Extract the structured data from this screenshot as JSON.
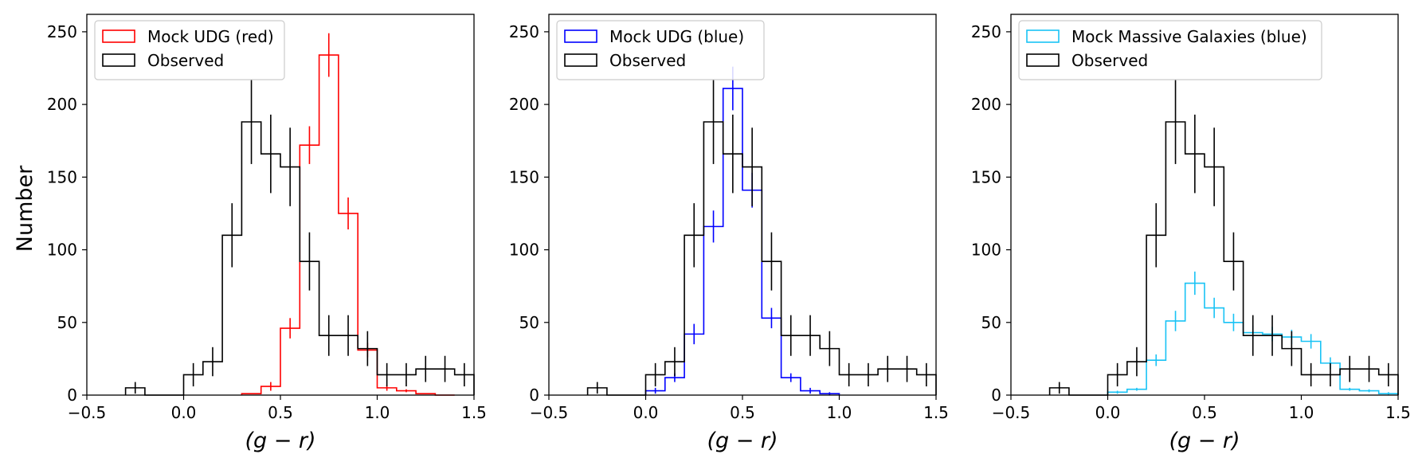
{
  "figure": {
    "shared_ylabel": "Number"
  },
  "chart_data": [
    {
      "type": "histogram",
      "title": "",
      "xlabel": "(g − r)",
      "ylabel": "Number",
      "xlim": [
        -0.5,
        1.5
      ],
      "ylim": [
        0,
        262
      ],
      "xticks": [
        -0.5,
        0.0,
        0.5,
        1.0,
        1.5
      ],
      "xtick_labels": [
        "−0.5",
        "0.0",
        "0.5",
        "1.0",
        "1.5"
      ],
      "yticks": [
        0,
        50,
        100,
        150,
        200,
        250
      ],
      "ytick_labels": [
        "0",
        "50",
        "100",
        "150",
        "200",
        "250"
      ],
      "legend": "top-left",
      "bin_width": 0.1,
      "series": [
        {
          "name": "Mock UDG (red)",
          "color": "#ff0000",
          "bin_left": [
            0.3,
            0.4,
            0.5,
            0.6,
            0.7,
            0.8,
            0.9,
            1.0,
            1.1,
            1.2,
            1.3
          ],
          "values": [
            1,
            6,
            46,
            172,
            234,
            125,
            31,
            5,
            3,
            1,
            0
          ],
          "errors": [
            0,
            3,
            7,
            13,
            15,
            11,
            5,
            2,
            1,
            0,
            0
          ]
        },
        {
          "name": "Observed",
          "color": "#000000",
          "bin_left": [
            -0.3,
            -0.2,
            -0.1,
            0.0,
            0.1,
            0.2,
            0.3,
            0.4,
            0.5,
            0.6,
            0.7,
            0.8,
            0.9,
            1.0,
            1.1,
            1.2,
            1.3,
            1.4
          ],
          "values": [
            5,
            0,
            0,
            14,
            23,
            110,
            188,
            166,
            157,
            92,
            41,
            41,
            32,
            14,
            14,
            18,
            18,
            14
          ],
          "errors": [
            4,
            0,
            0,
            8,
            10,
            22,
            29,
            27,
            27,
            20,
            14,
            14,
            12,
            8,
            8,
            9,
            9,
            8
          ]
        }
      ]
    },
    {
      "type": "histogram",
      "title": "",
      "xlabel": "(g − r)",
      "ylabel": "",
      "xlim": [
        -0.5,
        1.5
      ],
      "ylim": [
        0,
        262
      ],
      "xticks": [
        -0.5,
        0.0,
        0.5,
        1.0,
        1.5
      ],
      "xtick_labels": [
        "−0.5",
        "0.0",
        "0.5",
        "1.0",
        "1.5"
      ],
      "yticks": [
        0,
        50,
        100,
        150,
        200,
        250
      ],
      "ytick_labels": [
        "0",
        "50",
        "100",
        "150",
        "200",
        "250"
      ],
      "legend": "top-left",
      "bin_width": 0.1,
      "series": [
        {
          "name": "Mock UDG (blue)",
          "color": "#0000ff",
          "bin_left": [
            0.0,
            0.1,
            0.2,
            0.3,
            0.4,
            0.5,
            0.6,
            0.7,
            0.8,
            0.9
          ],
          "values": [
            3,
            12,
            42,
            116,
            211,
            141,
            53,
            12,
            3,
            1
          ],
          "errors": [
            2,
            3,
            7,
            11,
            15,
            12,
            7,
            3,
            2,
            1
          ]
        },
        {
          "name": "Observed",
          "color": "#000000",
          "bin_left": [
            -0.3,
            -0.2,
            -0.1,
            0.0,
            0.1,
            0.2,
            0.3,
            0.4,
            0.5,
            0.6,
            0.7,
            0.8,
            0.9,
            1.0,
            1.1,
            1.2,
            1.3,
            1.4
          ],
          "values": [
            5,
            0,
            0,
            14,
            23,
            110,
            188,
            166,
            157,
            92,
            41,
            41,
            32,
            14,
            14,
            18,
            18,
            14
          ],
          "errors": [
            4,
            0,
            0,
            8,
            10,
            22,
            29,
            27,
            27,
            20,
            14,
            14,
            12,
            8,
            8,
            9,
            9,
            8
          ]
        }
      ]
    },
    {
      "type": "histogram",
      "title": "",
      "xlabel": "(g − r)",
      "ylabel": "",
      "xlim": [
        -0.5,
        1.5
      ],
      "ylim": [
        0,
        262
      ],
      "xticks": [
        -0.5,
        0.0,
        0.5,
        1.0,
        1.5
      ],
      "xtick_labels": [
        "−0.5",
        "0.0",
        "0.5",
        "1.0",
        "1.5"
      ],
      "yticks": [
        0,
        50,
        100,
        150,
        200,
        250
      ],
      "ytick_labels": [
        "0",
        "50",
        "100",
        "150",
        "200",
        "250"
      ],
      "legend": "top-left",
      "bin_width": 0.1,
      "series": [
        {
          "name": "Mock Massive Galaxies (blue)",
          "color": "#19c3f5",
          "bin_left": [
            0.0,
            0.1,
            0.2,
            0.3,
            0.4,
            0.5,
            0.6,
            0.7,
            0.8,
            0.9,
            1.0,
            1.1,
            1.2,
            1.3,
            1.4
          ],
          "values": [
            2,
            4,
            24,
            51,
            77,
            60,
            50,
            43,
            42,
            40,
            37,
            22,
            4,
            3,
            1
          ],
          "errors": [
            1,
            1,
            4,
            7,
            8,
            7,
            6,
            5,
            5,
            5,
            5,
            4,
            1,
            1,
            1
          ]
        },
        {
          "name": "Observed",
          "color": "#000000",
          "bin_left": [
            -0.3,
            -0.2,
            -0.1,
            0.0,
            0.1,
            0.2,
            0.3,
            0.4,
            0.5,
            0.6,
            0.7,
            0.8,
            0.9,
            1.0,
            1.1,
            1.2,
            1.3,
            1.4
          ],
          "values": [
            5,
            0,
            0,
            14,
            23,
            110,
            188,
            166,
            157,
            92,
            41,
            41,
            32,
            14,
            14,
            18,
            18,
            14
          ],
          "errors": [
            4,
            0,
            0,
            8,
            10,
            22,
            29,
            27,
            27,
            20,
            14,
            14,
            12,
            8,
            8,
            9,
            9,
            8
          ]
        }
      ]
    }
  ]
}
